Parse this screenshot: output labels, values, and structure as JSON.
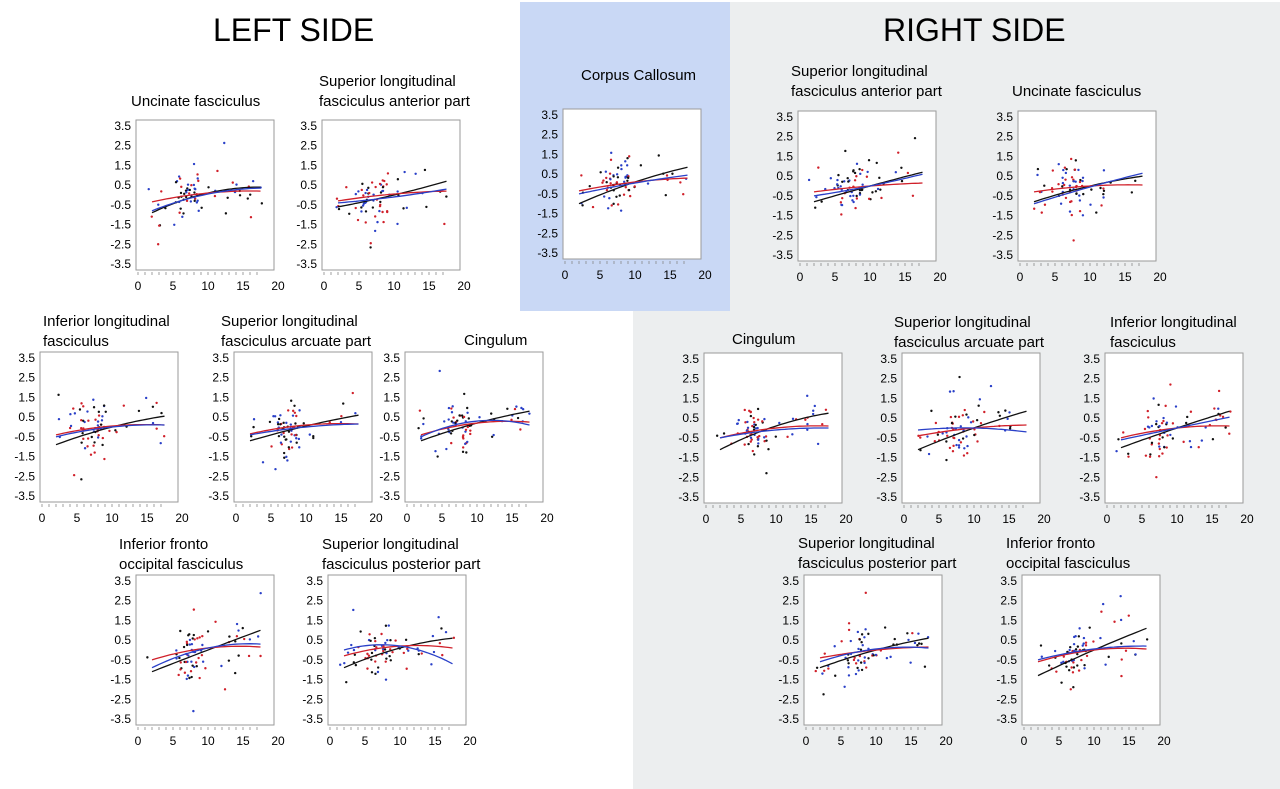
{
  "headers": {
    "left": "LEFT SIDE",
    "right": "RIGHT SIDE"
  },
  "colors": {
    "black": "#111111",
    "red": "#d0202a",
    "blue": "#2a40c8",
    "highlight": "#c9d8f5",
    "right_bg": "#eceeef",
    "frame": "#9a9a9a"
  },
  "chart_data": [
    {
      "type": "scatter",
      "side": "left",
      "title": [
        "Uncinate fasciculus"
      ],
      "yticks": [
        "3.5",
        "2.5",
        "1.5",
        "0.5",
        "-0.5",
        "-1.5",
        "-2.5",
        "-3.5"
      ],
      "xticks": [
        "0",
        "5",
        "10",
        "15",
        "20"
      ],
      "xlim": [
        0,
        20
      ],
      "ylim": [
        -3.7,
        3.7
      ],
      "fits": {
        "black": [
          -0.9,
          0.1,
          0.4
        ],
        "red": [
          -0.35,
          0.1,
          0.2
        ],
        "blue": [
          -0.8,
          0.05,
          0.35
        ]
      }
    },
    {
      "type": "scatter",
      "side": "left",
      "title": [
        "Superior longitudinal",
        "fasciculus anterior part"
      ],
      "yticks": [
        "3.5",
        "2.5",
        "1.5",
        "0.5",
        "-0.5",
        "-1.5",
        "-2.5",
        "-3.5"
      ],
      "xticks": [
        "0",
        "5",
        "10",
        "15",
        "20"
      ],
      "xlim": [
        0,
        20
      ],
      "ylim": [
        -3.7,
        3.7
      ],
      "fits": {
        "black": [
          -0.6,
          0.0,
          0.7
        ],
        "red": [
          -0.3,
          0.05,
          0.2
        ],
        "blue": [
          -0.4,
          -0.1,
          0.3
        ]
      }
    },
    {
      "type": "scatter",
      "side": "left",
      "title": [
        "Inferior longitudinal",
        "fasciculus"
      ],
      "yticks": [
        "3.5",
        "2.5",
        "1.5",
        "0.5",
        "-0.5",
        "-1.5",
        "-2.5",
        "-3.5"
      ],
      "xticks": [
        "0",
        "5",
        "10",
        "15",
        "20"
      ],
      "xlim": [
        0,
        20
      ],
      "ylim": [
        -3.7,
        3.7
      ],
      "fits": {
        "black": [
          -0.9,
          0.0,
          0.55
        ],
        "red": [
          -0.4,
          0.05,
          0.1
        ],
        "blue": [
          -0.5,
          0.0,
          0.1
        ]
      }
    },
    {
      "type": "scatter",
      "side": "left",
      "title": [
        "Superior longitudinal",
        "fasciculus arcuate part"
      ],
      "yticks": [
        "3.5",
        "2.5",
        "1.5",
        "0.5",
        "-0.5",
        "-1.5",
        "-2.5",
        "-3.5"
      ],
      "xticks": [
        "0",
        "5",
        "10",
        "15",
        "20"
      ],
      "xlim": [
        0,
        20
      ],
      "ylim": [
        -3.7,
        3.7
      ],
      "fits": {
        "black": [
          -0.7,
          0.05,
          0.6
        ],
        "red": [
          -0.35,
          0.1,
          0.15
        ],
        "blue": [
          -0.4,
          0.0,
          0.15
        ]
      }
    },
    {
      "type": "scatter",
      "side": "left",
      "title": [
        "Cingulum"
      ],
      "yticks": [
        "3.5",
        "2.5",
        "1.5",
        "0.5",
        "-0.5",
        "-1.5",
        "-2.5",
        "-3.5"
      ],
      "xticks": [
        "0",
        "5",
        "10",
        "15",
        "20"
      ],
      "xlim": [
        0,
        20
      ],
      "ylim": [
        -3.7,
        3.7
      ],
      "fits": {
        "black": [
          -0.7,
          0.2,
          0.8
        ],
        "red": [
          -0.4,
          0.2,
          0.25
        ],
        "blue": [
          -0.5,
          0.3,
          0.1
        ]
      }
    },
    {
      "type": "scatter",
      "side": "left",
      "title": [
        "Inferior fronto",
        "occipital fasciculus"
      ],
      "yticks": [
        "3.5",
        "2.5",
        "1.5",
        "0.5",
        "-0.5",
        "-1.5",
        "-2.5",
        "-3.5"
      ],
      "xticks": [
        "0",
        "5",
        "10",
        "15",
        "20"
      ],
      "xlim": [
        0,
        20
      ],
      "ylim": [
        -3.7,
        3.7
      ],
      "fits": {
        "black": [
          -1.1,
          0.0,
          1.0
        ],
        "red": [
          -0.5,
          0.1,
          0.15
        ],
        "blue": [
          -0.9,
          0.1,
          0.3
        ]
      }
    },
    {
      "type": "scatter",
      "side": "left",
      "title": [
        "Superior longitudinal",
        "fasciculus posterior part"
      ],
      "yticks": [
        "3.5",
        "2.5",
        "1.5",
        "0.5",
        "-0.5",
        "-1.5",
        "-2.5",
        "-3.5"
      ],
      "xticks": [
        "0",
        "5",
        "10",
        "15",
        "20"
      ],
      "xlim": [
        0,
        20
      ],
      "ylim": [
        -3.7,
        3.7
      ],
      "fits": {
        "black": [
          -0.9,
          0.1,
          0.6
        ],
        "red": [
          -0.3,
          0.2,
          0.1
        ],
        "blue": [
          0.0,
          0.2,
          -0.7
        ]
      }
    },
    {
      "type": "scatter",
      "side": "center",
      "title": [
        "Corpus Callosum"
      ],
      "yticks": [
        "3.5",
        "2.5",
        "1.5",
        "0.5",
        "-0.5",
        "-1.5",
        "-2.5",
        "-3.5"
      ],
      "xticks": [
        "0",
        "5",
        "10",
        "15",
        "20"
      ],
      "xlim": [
        0,
        20
      ],
      "ylim": [
        -3.7,
        3.7
      ],
      "fits": {
        "black": [
          -1.0,
          0.1,
          0.85
        ],
        "red": [
          -0.35,
          0.1,
          0.3
        ],
        "blue": [
          -0.5,
          0.05,
          0.45
        ]
      }
    },
    {
      "type": "scatter",
      "side": "right",
      "title": [
        "Superior longitudinal",
        "fasciculus anterior part"
      ],
      "yticks": [
        "3.5",
        "2.5",
        "1.5",
        "0.5",
        "-0.5",
        "-1.5",
        "-2.5",
        "-3.5"
      ],
      "xticks": [
        "0",
        "5",
        "10",
        "15",
        "20"
      ],
      "xlim": [
        0,
        20
      ],
      "ylim": [
        -3.7,
        3.7
      ],
      "fits": {
        "black": [
          -0.8,
          0.0,
          0.7
        ],
        "red": [
          -0.3,
          0.0,
          0.15
        ],
        "blue": [
          -0.5,
          0.0,
          0.6
        ]
      }
    },
    {
      "type": "scatter",
      "side": "right",
      "title": [
        "Uncinate fasciculus"
      ],
      "yticks": [
        "3.5",
        "2.5",
        "1.5",
        "0.5",
        "-0.5",
        "-1.5",
        "-2.5",
        "-3.5"
      ],
      "xticks": [
        "0",
        "5",
        "10",
        "15",
        "20"
      ],
      "xlim": [
        0,
        20
      ],
      "ylim": [
        -3.7,
        3.7
      ],
      "fits": {
        "black": [
          -0.8,
          0.0,
          0.5
        ],
        "red": [
          -0.3,
          0.0,
          0.05
        ],
        "blue": [
          -0.9,
          -0.05,
          0.65
        ]
      }
    },
    {
      "type": "scatter",
      "side": "right",
      "title": [
        "Cingulum"
      ],
      "yticks": [
        "3.5",
        "2.5",
        "1.5",
        "0.5",
        "-0.5",
        "-1.5",
        "-2.5",
        "-3.5"
      ],
      "xticks": [
        "0",
        "5",
        "10",
        "15",
        "20"
      ],
      "xlim": [
        0,
        20
      ],
      "ylim": [
        -3.7,
        3.7
      ],
      "fits": {
        "black": [
          -1.1,
          0.1,
          0.75
        ],
        "red": [
          -0.5,
          0.0,
          0.1
        ],
        "blue": [
          -0.5,
          -0.1,
          0.0
        ]
      }
    },
    {
      "type": "scatter",
      "side": "right",
      "title": [
        "Superior longitudinal",
        "fasciculus arcuate part"
      ],
      "yticks": [
        "3.5",
        "2.5",
        "1.5",
        "0.5",
        "-0.5",
        "-1.5",
        "-2.5",
        "-3.5"
      ],
      "xticks": [
        "0",
        "5",
        "10",
        "15",
        "20"
      ],
      "xlim": [
        0,
        20
      ],
      "ylim": [
        -3.7,
        3.7
      ],
      "fits": {
        "black": [
          -1.1,
          0.0,
          0.85
        ],
        "red": [
          -0.4,
          0.0,
          0.15
        ],
        "blue": [
          -0.1,
          0.0,
          -0.2
        ]
      }
    },
    {
      "type": "scatter",
      "side": "right",
      "title": [
        "Inferior longitudinal",
        "fasciculus"
      ],
      "yticks": [
        "3.5",
        "2.5",
        "1.5",
        "0.5",
        "-0.5",
        "-1.5",
        "-2.5",
        "-3.5"
      ],
      "xticks": [
        "0",
        "5",
        "10",
        "15",
        "20"
      ],
      "xlim": [
        0,
        20
      ],
      "ylim": [
        -3.7,
        3.7
      ],
      "fits": {
        "black": [
          -1.0,
          0.0,
          0.85
        ],
        "red": [
          -0.5,
          0.0,
          0.1
        ],
        "blue": [
          -0.6,
          0.0,
          0.55
        ]
      }
    },
    {
      "type": "scatter",
      "side": "right",
      "title": [
        "Superior longitudinal",
        "fasciculus posterior part"
      ],
      "yticks": [
        "3.5",
        "2.5",
        "1.5",
        "0.5",
        "-0.5",
        "-1.5",
        "-2.5",
        "-3.5"
      ],
      "xticks": [
        "0",
        "5",
        "10",
        "15",
        "20"
      ],
      "xlim": [
        0,
        20
      ],
      "ylim": [
        -3.7,
        3.7
      ],
      "fits": {
        "black": [
          -0.9,
          0.0,
          0.6
        ],
        "red": [
          -0.4,
          0.0,
          0.15
        ],
        "blue": [
          -0.6,
          0.05,
          0.1
        ]
      }
    },
    {
      "type": "scatter",
      "side": "right",
      "title": [
        "Inferior fronto",
        "occipital fasciculus"
      ],
      "yticks": [
        "3.5",
        "2.5",
        "1.5",
        "0.5",
        "-0.5",
        "-1.5",
        "-2.5",
        "-3.5"
      ],
      "xticks": [
        "0",
        "5",
        "10",
        "15",
        "20"
      ],
      "xlim": [
        0,
        20
      ],
      "ylim": [
        -3.7,
        3.7
      ],
      "fits": {
        "black": [
          -1.3,
          0.0,
          1.1
        ],
        "red": [
          -0.6,
          0.0,
          0.05
        ],
        "blue": [
          -0.5,
          0.05,
          0.2
        ]
      }
    }
  ]
}
